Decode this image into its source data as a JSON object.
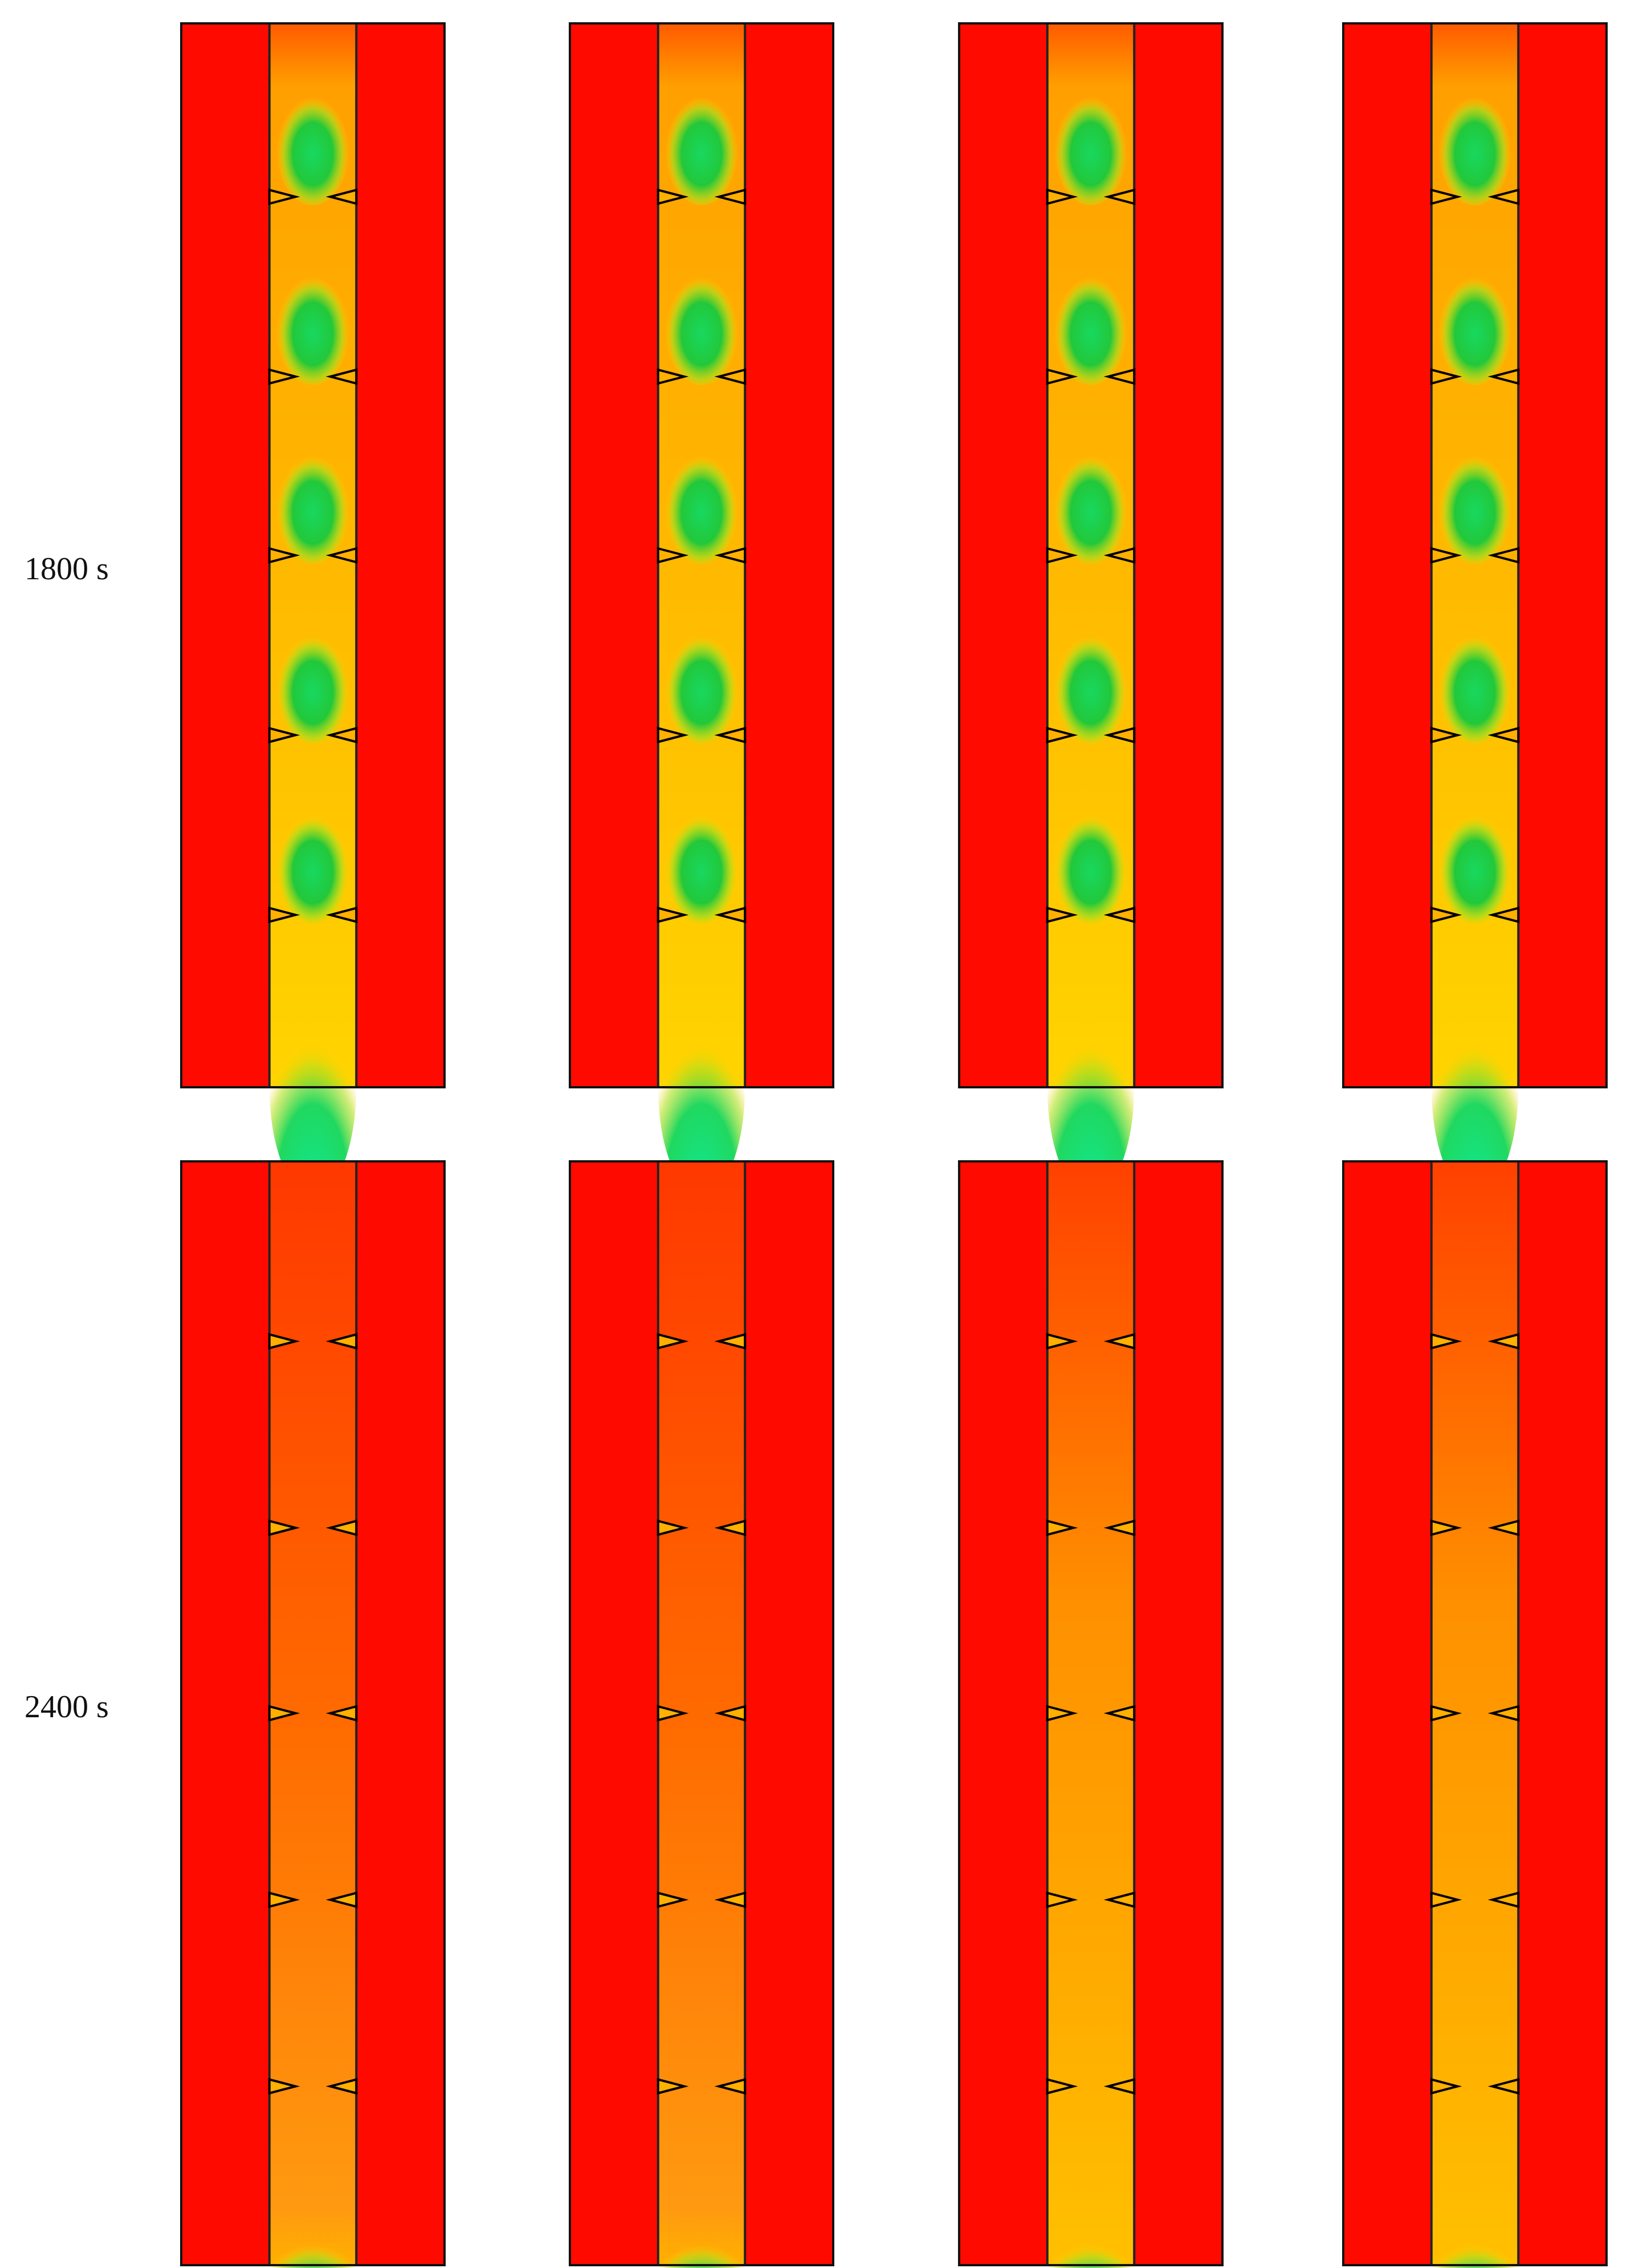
{
  "rows": [
    {
      "label": "1800 s"
    },
    {
      "label": "2400 s"
    }
  ]
}
